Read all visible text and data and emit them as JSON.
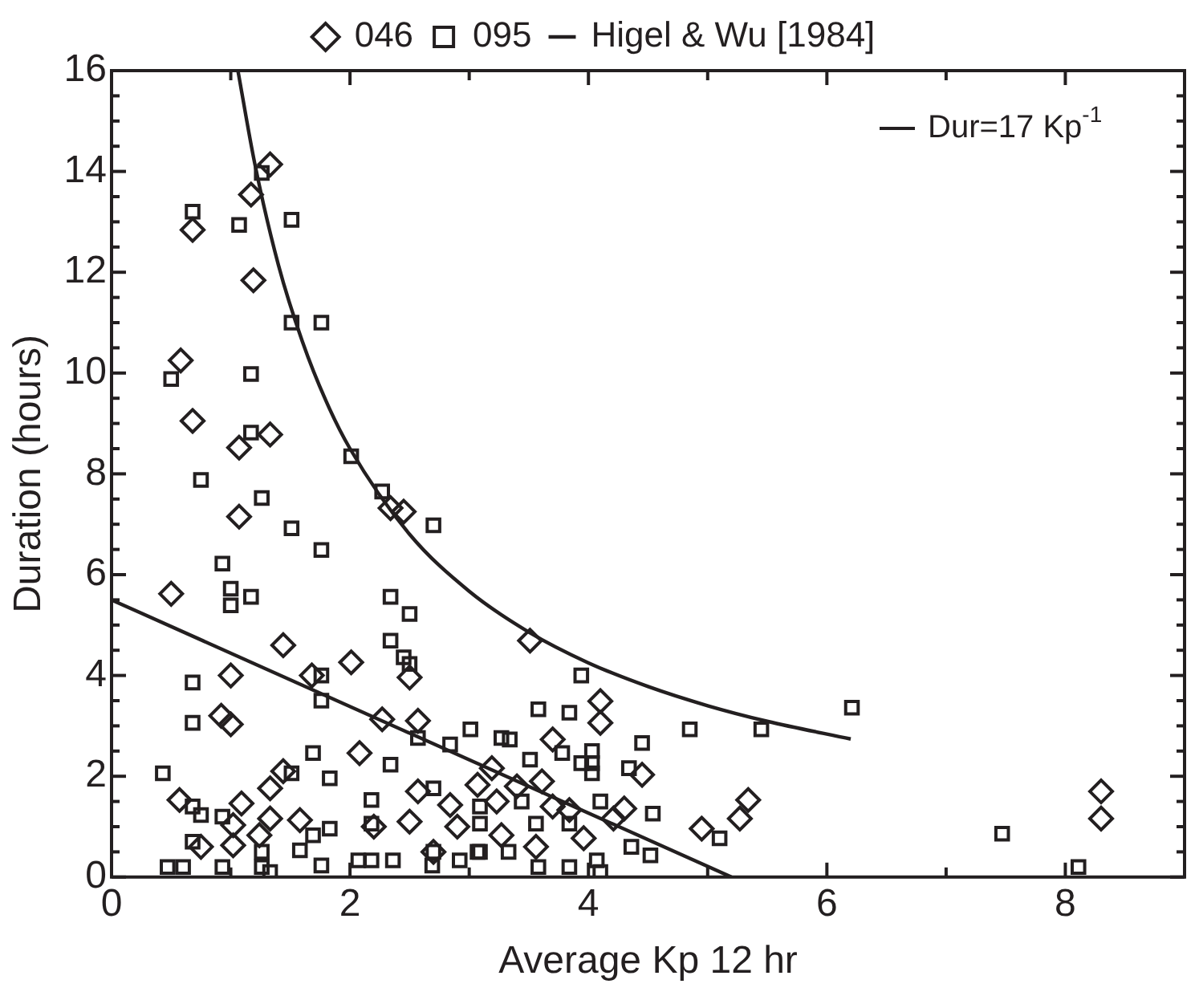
{
  "chart_data": {
    "type": "scatter",
    "xlabel": "Average Kp 12 hr",
    "ylabel": "Duration (hours)",
    "xlim": [
      0,
      9
    ],
    "xticks": [
      0,
      {
        "value": 1,
        "label": null
      },
      2,
      {
        "value": 3,
        "label": null
      },
      4,
      {
        "value": 5,
        "label": null
      },
      6,
      {
        "value": 7,
        "label": null
      },
      8,
      {
        "value": 9,
        "label": null
      }
    ],
    "ylim": [
      0,
      16
    ],
    "yticks": [
      0,
      {
        "value": 0.5,
        "label": null
      },
      {
        "value": 1,
        "label": null
      },
      {
        "value": 1.5,
        "label": null
      },
      2,
      {
        "value": 2.5,
        "label": null
      },
      {
        "value": 3,
        "label": null
      },
      {
        "value": 3.5,
        "label": null
      },
      4,
      {
        "value": 4.5,
        "label": null
      },
      {
        "value": 5,
        "label": null
      },
      {
        "value": 5.5,
        "label": null
      },
      6,
      {
        "value": 6.5,
        "label": null
      },
      {
        "value": 7,
        "label": null
      },
      {
        "value": 7.5,
        "label": null
      },
      8,
      {
        "value": 8.5,
        "label": null
      },
      {
        "value": 9,
        "label": null
      },
      {
        "value": 9.5,
        "label": null
      },
      10,
      {
        "value": 10.5,
        "label": null
      },
      {
        "value": 11,
        "label": null
      },
      {
        "value": 11.5,
        "label": null
      },
      12,
      {
        "value": 12.5,
        "label": null
      },
      {
        "value": 13,
        "label": null
      },
      {
        "value": 13.5,
        "label": null
      },
      14,
      {
        "value": 14.5,
        "label": null
      },
      {
        "value": 15,
        "label": null
      },
      {
        "value": 15.5,
        "label": null
      },
      16
    ],
    "grid": false,
    "legend": "top",
    "annotations": [
      "Dur=17 Kp$^{-1}$"
    ],
    "series": [
      {
        "name": "046",
        "marker": "diamond",
        "color": "#231f20",
        "x": [
          1.33,
          1.17,
          0.68,
          1.19,
          0.58,
          0.68,
          1.33,
          1.07,
          0.5,
          1.07,
          1.44,
          1.0,
          1.68,
          2.01,
          0.92,
          1.0,
          2.27,
          2.57,
          2.5,
          2.08,
          1.44,
          1.33,
          0.57,
          1.09,
          2.57,
          1.58,
          1.33,
          1.02,
          1.24,
          0.75,
          1.02,
          2.5,
          3.07,
          2.84,
          2.34,
          2.45,
          3.51,
          4.1,
          4.1,
          3.7,
          4.45,
          3.19,
          5.34,
          5.27,
          4.95,
          3.61,
          3.23,
          3.7,
          3.84,
          4.3,
          4.21,
          3.56,
          3.27,
          3.96,
          8.3,
          8.3,
          2.9,
          2.7,
          2.2,
          3.4
        ],
        "values": [
          14.14,
          13.54,
          12.84,
          11.84,
          10.25,
          9.05,
          8.78,
          8.52,
          5.62,
          7.15,
          4.6,
          4.0,
          4.0,
          4.26,
          3.2,
          3.03,
          3.13,
          3.1,
          3.96,
          2.46,
          2.1,
          1.76,
          1.53,
          1.46,
          1.7,
          1.13,
          1.16,
          1.03,
          0.83,
          0.6,
          0.63,
          1.1,
          1.83,
          1.43,
          7.32,
          7.25,
          4.69,
          3.49,
          3.06,
          2.73,
          2.03,
          2.16,
          1.53,
          1.16,
          0.96,
          1.9,
          1.5,
          1.4,
          1.33,
          1.36,
          1.16,
          0.6,
          0.83,
          0.77,
          1.7,
          1.16,
          1.0,
          0.5,
          1.0,
          1.8
        ]
      },
      {
        "name": "095",
        "marker": "square",
        "color": "#231f20",
        "x": [
          1.26,
          0.68,
          1.07,
          1.51,
          1.51,
          1.76,
          0.5,
          1.17,
          1.17,
          2.01,
          0.75,
          2.27,
          1.26,
          1.51,
          1.76,
          0.93,
          1.0,
          1.0,
          1.17,
          2.34,
          2.5,
          2.34,
          2.45,
          2.5,
          2.7,
          0.68,
          1.76,
          1.76,
          0.68,
          3.01,
          2.84,
          2.57,
          1.69,
          2.34,
          0.43,
          1.83,
          1.51,
          2.18,
          2.7,
          0.68,
          0.75,
          0.93,
          1.83,
          1.69,
          2.18,
          0.68,
          1.26,
          1.58,
          2.07,
          2.18,
          2.36,
          2.7,
          2.92,
          3.07,
          0.47,
          0.6,
          0.93,
          1.26,
          1.33,
          1.76,
          2.69,
          3.09,
          3.94,
          3.58,
          3.84,
          4.85,
          5.45,
          6.21,
          4.45,
          3.27,
          3.34,
          3.51,
          3.78,
          4.03,
          4.03,
          4.03,
          3.94,
          4.34,
          4.1,
          4.54,
          3.44,
          3.56,
          4.36,
          4.52,
          5.1,
          3.58,
          3.84,
          4.07,
          4.1,
          3.33,
          3.09,
          3.09,
          3.84,
          7.47,
          8.11
        ],
        "values": [
          13.97,
          13.2,
          12.94,
          13.04,
          11.0,
          11.0,
          9.88,
          9.98,
          8.82,
          8.35,
          7.88,
          7.65,
          7.52,
          6.92,
          6.49,
          6.22,
          5.72,
          5.39,
          5.56,
          5.56,
          5.22,
          4.69,
          4.36,
          4.23,
          6.98,
          3.86,
          4.0,
          3.5,
          3.06,
          2.93,
          2.63,
          2.76,
          2.46,
          2.23,
          2.06,
          1.96,
          2.06,
          1.53,
          1.76,
          1.4,
          1.23,
          1.2,
          0.96,
          0.83,
          1.06,
          0.7,
          0.5,
          0.53,
          0.33,
          0.33,
          0.33,
          0.5,
          0.33,
          0.5,
          0.2,
          0.2,
          0.2,
          0.2,
          0.1,
          0.23,
          0.23,
          1.4,
          4.0,
          3.33,
          3.26,
          2.93,
          2.93,
          3.36,
          2.66,
          2.76,
          2.73,
          2.33,
          2.46,
          2.5,
          2.26,
          2.06,
          2.26,
          2.16,
          1.5,
          1.26,
          1.5,
          1.06,
          0.6,
          0.43,
          0.77,
          0.2,
          0.2,
          0.33,
          0.1,
          0.5,
          0.5,
          1.06,
          1.06,
          0.86,
          0.2
        ]
      },
      {
        "name": "Higel & Wu [1984]",
        "type": "line",
        "marker": "none",
        "color": "#231f20",
        "x": [
          0,
          5.2
        ],
        "values": [
          5.5,
          0
        ]
      },
      {
        "type": "line",
        "marker": "none",
        "color": "#231f20",
        "x": [
          1.06,
          1.2,
          1.4,
          1.6,
          1.8,
          2,
          2.5,
          3,
          3.5,
          4,
          4.5,
          5,
          5.5,
          6.2
        ],
        "values": [
          16,
          14.17,
          12.14,
          10.63,
          9.44,
          8.5,
          6.8,
          5.67,
          4.86,
          4.25,
          3.78,
          3.4,
          3.09,
          2.74
        ]
      }
    ]
  }
}
